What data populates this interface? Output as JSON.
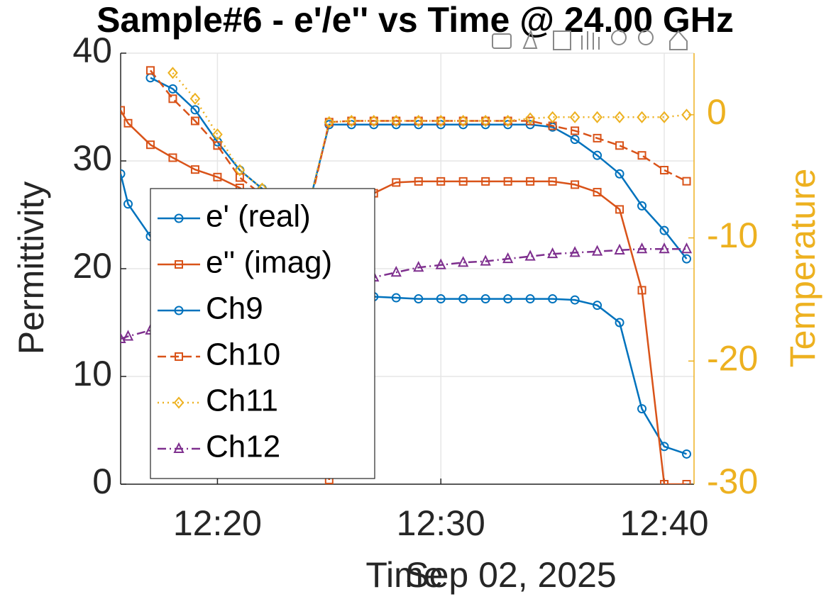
{
  "chart_data": {
    "type": "line",
    "title": "Sample#6 - e'/e'' vs Time @ 24.00 GHz",
    "subtitle": "Sep 02, 2025",
    "xlabel": "Time",
    "ylabel": "Permittivity",
    "y2label": "Temperature",
    "x": [
      "12:15:40",
      "12:16",
      "12:17",
      "12:18",
      "12:19",
      "12:20",
      "12:21",
      "12:22",
      "12:23",
      "12:24",
      "12:25",
      "12:26",
      "12:27",
      "12:28",
      "12:29",
      "12:30",
      "12:31",
      "12:32",
      "12:33",
      "12:34",
      "12:35",
      "12:36",
      "12:37",
      "12:38",
      "12:39",
      "12:40",
      "12:41"
    ],
    "xlim": [
      "12:15:40",
      "12:41:20"
    ],
    "xticks": [
      "12:20",
      "12:30",
      "12:40"
    ],
    "ylim": [
      0,
      40
    ],
    "yticks": [
      0,
      10,
      20,
      30,
      40
    ],
    "y2lim": [
      -30,
      5
    ],
    "y2ticks": [
      -30,
      -20,
      -10,
      0
    ],
    "y2color": "#edb120",
    "grid": true,
    "legend_location": "west",
    "series": [
      {
        "name": "e' (real)",
        "color": "#0072bd",
        "line_style": "solid",
        "marker": "circle",
        "values": [
          28.8,
          26,
          23,
          21,
          19.5,
          18.5,
          18,
          17.8,
          17.6,
          17.5,
          17.4,
          17.4,
          17.4,
          17.3,
          17.2,
          17.2,
          17.2,
          17.2,
          17.2,
          17.2,
          17.2,
          17.1,
          16.6,
          15.0,
          7,
          3.5,
          2.8
        ]
      },
      {
        "name": "e'' (imag)",
        "color": "#d95319",
        "line_style": "solid",
        "marker": "square",
        "values": [
          34.7,
          33.5,
          31.5,
          30.3,
          29.2,
          28.5,
          27.5,
          26,
          24,
          22,
          0.4,
          24,
          27,
          28,
          28.1,
          28.1,
          28.1,
          28.1,
          28.1,
          28.1,
          28.1,
          27.8,
          27.1,
          25.5,
          18,
          0,
          0
        ]
      },
      {
        "name": "Ch9",
        "color": "#0072bd",
        "line_style": "solid",
        "marker": "circle",
        "axis": "y2",
        "values": [
          null,
          null,
          3.0,
          2.1,
          0.4,
          -2.2,
          -4.5,
          -6,
          -7,
          -8,
          -0.8,
          -0.8,
          -0.8,
          -0.8,
          -0.8,
          -0.8,
          -0.8,
          -0.8,
          -0.8,
          -0.8,
          -1.0,
          -2.0,
          -3.3,
          -4.8,
          -7.4,
          -9.4,
          -11.7
        ]
      },
      {
        "name": "Ch10",
        "color": "#d95319",
        "line_style": "dashed",
        "marker": "square",
        "axis": "y2",
        "values": [
          null,
          null,
          3.6,
          1.3,
          -0.5,
          -2.5,
          -5.1,
          -6.5,
          -7.5,
          -8.5,
          -0.6,
          -0.5,
          -0.5,
          -0.5,
          -0.5,
          -0.5,
          -0.5,
          -0.5,
          -0.5,
          -0.5,
          -0.9,
          -1.3,
          -1.9,
          -2.5,
          -3.3,
          -4.5,
          -5.4
        ]
      },
      {
        "name": "Ch11",
        "color": "#edb120",
        "line_style": "dotted",
        "marker": "diamond",
        "axis": "y2",
        "values": [
          null,
          null,
          null,
          3.4,
          1.3,
          -1.6,
          -4.5,
          -6,
          -7,
          -8,
          -0.6,
          -0.5,
          -0.5,
          -0.5,
          -0.5,
          -0.5,
          -0.5,
          -0.5,
          -0.5,
          -0.3,
          -0.2,
          -0.2,
          -0.2,
          -0.2,
          -0.2,
          -0.2,
          0
        ]
      },
      {
        "name": "Ch12",
        "color": "#7e2f8e",
        "line_style": "dashdot",
        "marker": "triangle",
        "axis": "y2",
        "values": [
          -18.2,
          -18.0,
          -17.5,
          -16.5,
          -16,
          -15.6,
          -15.2,
          -14.8,
          -14.4,
          -14.1,
          -13.9,
          -13.6,
          -13.2,
          -12.8,
          -12.4,
          -12.2,
          -12.0,
          -11.9,
          -11.7,
          -11.5,
          -11.3,
          -11.2,
          -11.1,
          -11.0,
          -10.9,
          -10.9,
          -10.9
        ]
      }
    ]
  }
}
